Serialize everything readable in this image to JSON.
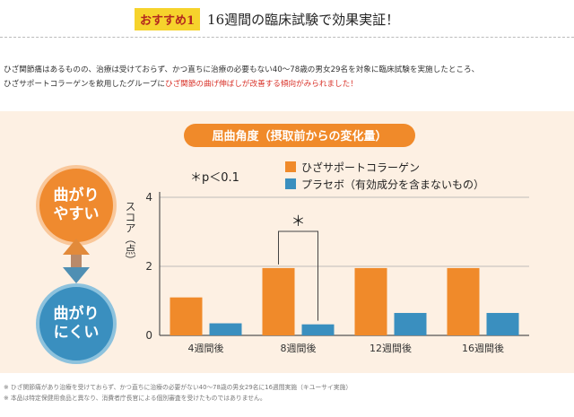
{
  "header": {
    "badge": "おすすめ1",
    "title": "16週間の臨床試験で効果実証！"
  },
  "intro": {
    "line1": "ひざ関節痛はあるものの、治療は受けておらず、かつ直ちに治療の必要もない40～78歳の男女29名を対象に臨床試験を実施したところ、",
    "line2_plain": "ひざサポートコラーゲンを飲用したグループに",
    "line2_highlight": "ひざ関節の曲げ伸ばしが改善する傾向がみられました！"
  },
  "side_labels": {
    "easy": "曲がり\nやすい",
    "hard": "曲がり\nにくい"
  },
  "colors": {
    "orange": "#f08a2a",
    "blue": "#3a8fbf",
    "panel": "#fdf0e3"
  },
  "chart_data": {
    "type": "bar",
    "title": "屈曲角度（摂取前からの変化量）",
    "categories": [
      "4週間後",
      "8週間後",
      "12週間後",
      "16週間後"
    ],
    "series": [
      {
        "name": "ひざサポートコラーゲン",
        "values": [
          1.1,
          1.95,
          1.95,
          1.95
        ]
      },
      {
        "name": "プラセボ（有効成分を含まないもの）",
        "values": [
          0.35,
          0.32,
          0.65,
          0.65
        ]
      }
    ],
    "ylabel": "スコア（点）",
    "ylim": [
      0,
      4
    ],
    "yticks": [
      0,
      2,
      4
    ],
    "significance_note": "＊p＜0.1",
    "significance_marker": "＊",
    "significant_category": "8週間後"
  },
  "footnotes": [
    "※ ひざ関節痛があり治療を受けておらず、かつ直ちに治療の必要がない40～78歳の男女29名に16週間実施（キユーサイ実施）",
    "※ 本品は特定保健用食品と異なり、消費者庁長官による個別審査を受けたものではありません。"
  ]
}
